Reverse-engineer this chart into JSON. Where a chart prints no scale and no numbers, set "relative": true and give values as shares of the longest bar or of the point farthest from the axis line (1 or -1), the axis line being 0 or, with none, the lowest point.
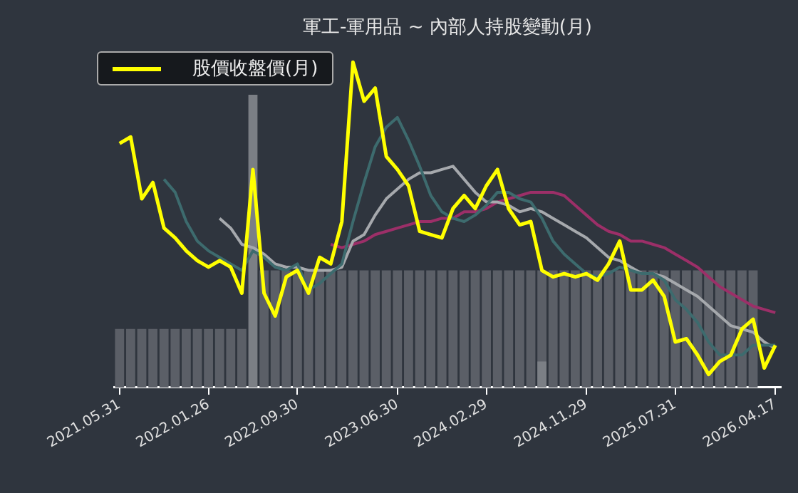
{
  "chart_data": {
    "type": "line",
    "title": "軍工-軍用品 ~ 內部人持股變動(月)",
    "relative": true,
    "legend": "top left",
    "grid": false,
    "marker": "none",
    "categories": [
      "2021.05.31",
      null,
      null,
      null,
      null,
      null,
      null,
      null,
      "2022.01.26",
      null,
      null,
      null,
      null,
      null,
      null,
      null,
      "2022.09.30",
      null,
      null,
      null,
      null,
      null,
      null,
      null,
      null,
      "2023.06.30",
      null,
      null,
      null,
      null,
      null,
      null,
      null,
      "2024.02.29",
      null,
      null,
      null,
      null,
      null,
      null,
      null,
      null,
      "2024.11.29",
      null,
      null,
      null,
      null,
      null,
      null,
      null,
      "2025.07.31",
      null,
      null,
      null,
      null,
      null,
      null,
      null,
      null,
      "2026.04.17"
    ],
    "series": [
      {
        "name": "股價收盤價(月)",
        "color": "#ffff00",
        "values": [
          0.75,
          0.77,
          0.58,
          0.63,
          0.49,
          0.46,
          0.42,
          0.39,
          0.37,
          0.39,
          0.37,
          0.29,
          0.67,
          0.29,
          0.22,
          0.34,
          0.36,
          0.29,
          0.4,
          0.38,
          0.51,
          1.0,
          0.88,
          0.92,
          0.71,
          0.67,
          0.62,
          0.48,
          0.47,
          0.46,
          0.55,
          0.59,
          0.55,
          0.62,
          0.67,
          0.55,
          0.5,
          0.51,
          0.36,
          0.34,
          0.35,
          0.34,
          0.35,
          0.33,
          0.38,
          0.45,
          0.3,
          0.3,
          0.33,
          0.28,
          0.14,
          0.15,
          0.1,
          0.04,
          0.08,
          0.1,
          0.18,
          0.21,
          0.06,
          0.13
        ]
      },
      {
        "color": "#3d6b6e",
        "values": [
          null,
          null,
          null,
          null,
          0.64,
          0.6,
          0.51,
          0.45,
          0.42,
          0.4,
          0.38,
          0.36,
          0.42,
          0.4,
          0.37,
          0.36,
          0.38,
          0.3,
          0.32,
          0.35,
          0.38,
          0.51,
          0.63,
          0.74,
          0.8,
          0.83,
          0.76,
          0.68,
          0.59,
          0.54,
          0.52,
          0.51,
          0.53,
          0.56,
          0.6,
          0.6,
          0.58,
          0.57,
          0.52,
          0.45,
          0.41,
          0.38,
          0.35,
          0.34,
          0.35,
          0.37,
          0.36,
          0.35,
          0.35,
          0.33,
          0.27,
          0.24,
          0.2,
          0.14,
          0.1,
          0.1,
          0.1,
          0.13,
          0.13,
          0.13
        ]
      },
      {
        "color": "#a6a9ad",
        "values": [
          null,
          null,
          null,
          null,
          null,
          null,
          null,
          null,
          null,
          0.52,
          0.49,
          0.44,
          0.43,
          0.41,
          0.38,
          0.37,
          0.37,
          0.36,
          0.36,
          0.36,
          0.37,
          0.45,
          0.47,
          0.53,
          0.58,
          0.61,
          0.64,
          0.66,
          0.66,
          0.67,
          0.68,
          0.64,
          0.6,
          0.57,
          0.57,
          0.56,
          0.54,
          0.55,
          0.54,
          0.52,
          0.5,
          0.48,
          0.46,
          0.43,
          0.4,
          0.39,
          0.37,
          0.35,
          0.35,
          0.34,
          0.32,
          0.3,
          0.28,
          0.25,
          0.22,
          0.19,
          0.18,
          0.17,
          0.14,
          0.12
        ]
      },
      {
        "color": "#9c2f68",
        "values": [
          null,
          null,
          null,
          null,
          null,
          null,
          null,
          null,
          null,
          null,
          null,
          null,
          null,
          null,
          null,
          null,
          null,
          null,
          null,
          0.44,
          0.43,
          0.44,
          0.45,
          0.47,
          0.48,
          0.49,
          0.5,
          0.51,
          0.51,
          0.52,
          0.52,
          0.54,
          0.54,
          0.55,
          0.57,
          0.58,
          0.59,
          0.6,
          0.6,
          0.6,
          0.59,
          0.56,
          0.53,
          0.5,
          0.48,
          0.47,
          0.45,
          0.45,
          0.44,
          0.43,
          0.41,
          0.39,
          0.37,
          0.34,
          0.31,
          0.29,
          0.27,
          0.25,
          0.24,
          0.23
        ]
      },
      {
        "type": "bar",
        "color": "#5b5f67",
        "values": [
          0.18,
          0.18,
          0.18,
          0.18,
          0.18,
          0.18,
          0.18,
          0.18,
          0.18,
          0.18,
          0.18,
          0.18,
          null,
          0.36,
          0.36,
          0.36,
          0.36,
          0.36,
          0.36,
          0.36,
          0.36,
          0.36,
          0.36,
          0.36,
          0.36,
          0.36,
          0.36,
          0.36,
          0.36,
          0.36,
          0.36,
          0.36,
          0.36,
          0.36,
          0.36,
          0.36,
          0.36,
          0.36,
          0.36,
          0.36,
          0.36,
          0.36,
          0.36,
          0.36,
          0.36,
          0.36,
          0.36,
          0.36,
          0.36,
          0.36,
          0.36,
          0.36,
          0.36,
          0.36,
          0.36,
          0.36,
          0.36,
          0.36,
          null,
          null
        ]
      },
      {
        "type": "bar",
        "color": "#7b7f85",
        "values": [
          null,
          null,
          null,
          null,
          null,
          null,
          null,
          null,
          null,
          null,
          null,
          null,
          0.9,
          null,
          null,
          null,
          null,
          null,
          null,
          null,
          null,
          null,
          null,
          null,
          null,
          null,
          null,
          null,
          null,
          null,
          null,
          null,
          null,
          null,
          null,
          null,
          null,
          null,
          0.08,
          null,
          null,
          null,
          null,
          null,
          null,
          null,
          null,
          null,
          null,
          null,
          null,
          null,
          null,
          null,
          null,
          null,
          null,
          null,
          null,
          null
        ]
      }
    ]
  }
}
